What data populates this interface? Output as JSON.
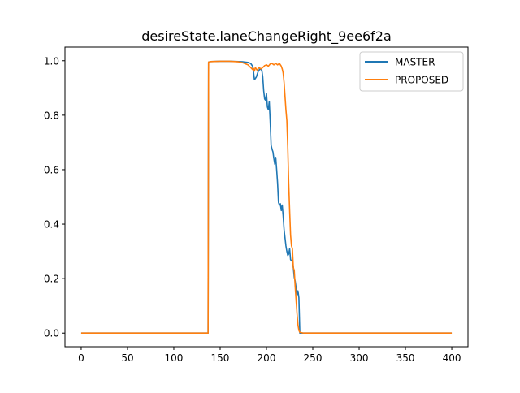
{
  "chart_data": {
    "type": "line",
    "title": "desireState.laneChangeRight_9ee6f2a",
    "xlabel": "",
    "ylabel": "",
    "xlim": [
      -17.5,
      417.5
    ],
    "ylim": [
      -0.05,
      1.05
    ],
    "x_ticks": [
      0,
      50,
      100,
      150,
      200,
      250,
      300,
      350,
      400
    ],
    "y_ticks": [
      0.0,
      0.2,
      0.4,
      0.6,
      0.8,
      1.0
    ],
    "x_tick_labels": [
      "0",
      "50",
      "100",
      "150",
      "200",
      "250",
      "300",
      "350",
      "400"
    ],
    "y_tick_labels": [
      "0.0",
      "0.2",
      "0.4",
      "0.6",
      "0.8",
      "1.0"
    ],
    "grid": false,
    "legend_position": "top-right",
    "series": [
      {
        "name": "MASTER",
        "color": "#1f77b4",
        "points": [
          [
            0,
            0
          ],
          [
            137,
            0
          ],
          [
            137.5,
            0.995
          ],
          [
            140,
            0.997
          ],
          [
            150,
            0.998
          ],
          [
            160,
            0.998
          ],
          [
            170,
            0.997
          ],
          [
            175,
            0.996
          ],
          [
            180,
            0.994
          ],
          [
            183,
            0.99
          ],
          [
            185,
            0.98
          ],
          [
            186,
            0.96
          ],
          [
            187,
            0.93
          ],
          [
            189,
            0.94
          ],
          [
            191,
            0.96
          ],
          [
            193,
            0.97
          ],
          [
            195,
            0.965
          ],
          [
            196,
            0.94
          ],
          [
            197,
            0.89
          ],
          [
            198,
            0.86
          ],
          [
            199,
            0.855
          ],
          [
            200,
            0.88
          ],
          [
            201,
            0.83
          ],
          [
            202,
            0.82
          ],
          [
            203,
            0.85
          ],
          [
            204,
            0.78
          ],
          [
            205,
            0.69
          ],
          [
            206,
            0.675
          ],
          [
            207,
            0.665
          ],
          [
            208,
            0.64
          ],
          [
            209,
            0.62
          ],
          [
            210,
            0.645
          ],
          [
            211,
            0.6
          ],
          [
            212,
            0.55
          ],
          [
            213,
            0.48
          ],
          [
            214,
            0.47
          ],
          [
            215,
            0.475
          ],
          [
            216,
            0.45
          ],
          [
            217,
            0.47
          ],
          [
            218,
            0.43
          ],
          [
            219,
            0.38
          ],
          [
            220,
            0.35
          ],
          [
            221,
            0.32
          ],
          [
            222,
            0.3
          ],
          [
            223,
            0.285
          ],
          [
            224,
            0.29
          ],
          [
            225,
            0.31
          ],
          [
            226,
            0.27
          ],
          [
            227,
            0.265
          ],
          [
            228,
            0.27
          ],
          [
            229,
            0.24
          ],
          [
            230,
            0.205
          ],
          [
            231,
            0.19
          ],
          [
            232,
            0.165
          ],
          [
            233,
            0.14
          ],
          [
            234,
            0.155
          ],
          [
            235,
            0.13
          ],
          [
            236,
            0.0
          ],
          [
            240,
            0.0
          ],
          [
            300,
            0.0
          ],
          [
            400,
            0.0
          ]
        ]
      },
      {
        "name": "PROPOSED",
        "color": "#ff7f0e",
        "points": [
          [
            0,
            0
          ],
          [
            137,
            0
          ],
          [
            137.5,
            0.995
          ],
          [
            140,
            0.997
          ],
          [
            150,
            0.998
          ],
          [
            160,
            0.998
          ],
          [
            170,
            0.996
          ],
          [
            175,
            0.992
          ],
          [
            180,
            0.985
          ],
          [
            183,
            0.975
          ],
          [
            185,
            0.968
          ],
          [
            186,
            0.972
          ],
          [
            187,
            0.962
          ],
          [
            188,
            0.975
          ],
          [
            190,
            0.965
          ],
          [
            192,
            0.975
          ],
          [
            194,
            0.97
          ],
          [
            196,
            0.975
          ],
          [
            198,
            0.982
          ],
          [
            200,
            0.985
          ],
          [
            202,
            0.98
          ],
          [
            204,
            0.988
          ],
          [
            206,
            0.99
          ],
          [
            208,
            0.985
          ],
          [
            210,
            0.99
          ],
          [
            212,
            0.985
          ],
          [
            214,
            0.99
          ],
          [
            216,
            0.98
          ],
          [
            217,
            0.97
          ],
          [
            218,
            0.955
          ],
          [
            219,
            0.92
          ],
          [
            220,
            0.87
          ],
          [
            221,
            0.82
          ],
          [
            222,
            0.78
          ],
          [
            223,
            0.68
          ],
          [
            224,
            0.55
          ],
          [
            225,
            0.45
          ],
          [
            226,
            0.36
          ],
          [
            227,
            0.32
          ],
          [
            228,
            0.31
          ],
          [
            229,
            0.24
          ],
          [
            230,
            0.23
          ],
          [
            231,
            0.17
          ],
          [
            232,
            0.12
          ],
          [
            233,
            0.07
          ],
          [
            234,
            0.03
          ],
          [
            235,
            0.01
          ],
          [
            236,
            0.003
          ],
          [
            240,
            0.0
          ],
          [
            300,
            0.0
          ],
          [
            400,
            0.0
          ]
        ]
      }
    ]
  }
}
